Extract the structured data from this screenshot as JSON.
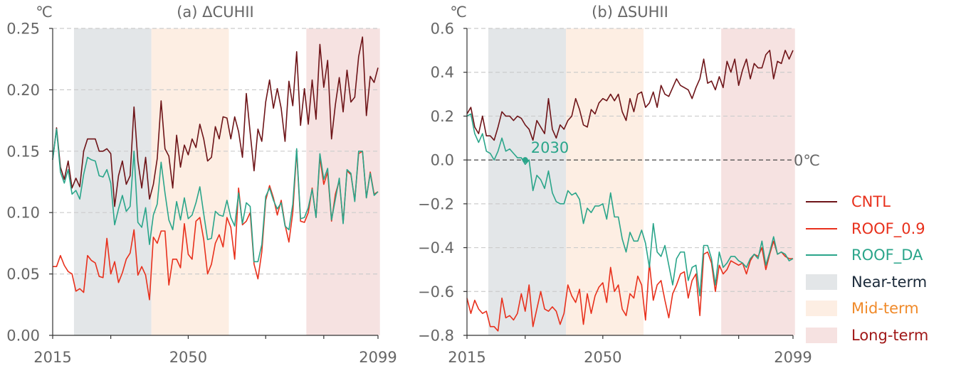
{
  "colors": {
    "CNTL": "#6e1418",
    "ROOF_0.9": "#e8301c",
    "ROOF_DA": "#2aa58a",
    "near_band": "#e3e6e8",
    "mid_band": "#fdeee3",
    "long_band": "#f6e2e1",
    "axis_text": "#666666",
    "grid": "#cccccc",
    "near_text": "#1b2a3a",
    "mid_text": "#f08a2a",
    "long_text": "#a01818"
  },
  "legend": [
    {
      "key": "CNTL",
      "label": "CNTL",
      "kind": "line",
      "text_color": "ROOF_0.9"
    },
    {
      "key": "ROOF_0.9",
      "label": "ROOF_0.9",
      "kind": "line",
      "text_color": "ROOF_0.9"
    },
    {
      "key": "ROOF_DA",
      "label": "ROOF_DA",
      "kind": "line",
      "text_color": "ROOF_DA"
    },
    {
      "key": "near_band",
      "label": "Near-term",
      "kind": "patch",
      "text_color": "near_text"
    },
    {
      "key": "mid_band",
      "label": "Mid-term",
      "kind": "patch",
      "text_color": "mid_text"
    },
    {
      "key": "long_band",
      "label": "Long-term",
      "kind": "patch",
      "text_color": "long_text"
    }
  ],
  "chart_data": [
    {
      "type": "line",
      "title": "(a) ΔCUHII",
      "ylabel": "℃",
      "xlim": [
        2015,
        2099
      ],
      "ylim": [
        0,
        0.25
      ],
      "yticks": [
        0,
        0.05,
        0.1,
        0.15,
        0.2,
        0.25
      ],
      "ytick_labels": [
        "0.00",
        "0.05",
        "0.10",
        "0.15",
        "0.20",
        "0.25"
      ],
      "xtick_labels": [
        {
          "year": 2015,
          "label": "2015"
        },
        {
          "year": 2050,
          "label": "2050"
        },
        {
          "year": 2099,
          "label": "2099"
        }
      ],
      "x_minor_ticks": [
        2015,
        2030,
        2050,
        2070,
        2085,
        2099
      ],
      "grid": "horizontal dashed",
      "periods": [
        {
          "name": "Near-term",
          "start": 2021,
          "end": 2040
        },
        {
          "name": "Mid-term",
          "start": 2041,
          "end": 2060
        },
        {
          "name": "Long-term",
          "start": 2081,
          "end": 2099
        }
      ],
      "x": [
        2015,
        2016,
        2017,
        2018,
        2019,
        2020,
        2021,
        2022,
        2023,
        2024,
        2025,
        2026,
        2027,
        2028,
        2029,
        2030,
        2031,
        2032,
        2033,
        2034,
        2035,
        2036,
        2037,
        2038,
        2039,
        2040,
        2041,
        2042,
        2043,
        2044,
        2045,
        2046,
        2047,
        2048,
        2049,
        2050,
        2051,
        2052,
        2053,
        2054,
        2055,
        2056,
        2057,
        2058,
        2059,
        2060,
        2061,
        2062,
        2063,
        2064,
        2065,
        2066,
        2067,
        2068,
        2069,
        2070,
        2071,
        2072,
        2073,
        2074,
        2075,
        2076,
        2077,
        2078,
        2079,
        2080,
        2081,
        2082,
        2083,
        2084,
        2085,
        2086,
        2087,
        2088,
        2089,
        2090,
        2091,
        2092,
        2093,
        2094,
        2095,
        2096,
        2097,
        2098,
        2099
      ],
      "series": [
        {
          "name": "CNTL",
          "values": [
            0.143,
            0.169,
            0.137,
            0.127,
            0.142,
            0.12,
            0.128,
            0.121,
            0.15,
            0.16,
            0.16,
            0.16,
            0.15,
            0.15,
            0.152,
            0.148,
            0.105,
            0.13,
            0.142,
            0.123,
            0.13,
            0.186,
            0.142,
            0.12,
            0.145,
            0.111,
            0.123,
            0.144,
            0.191,
            0.152,
            0.146,
            0.12,
            0.163,
            0.137,
            0.155,
            0.147,
            0.16,
            0.153,
            0.172,
            0.16,
            0.142,
            0.145,
            0.17,
            0.16,
            0.178,
            0.177,
            0.16,
            0.178,
            0.166,
            0.145,
            0.197,
            0.165,
            0.134,
            0.168,
            0.158,
            0.19,
            0.208,
            0.185,
            0.201,
            0.185,
            0.158,
            0.207,
            0.187,
            0.231,
            0.171,
            0.201,
            0.172,
            0.208,
            0.176,
            0.237,
            0.202,
            0.224,
            0.16,
            0.188,
            0.21,
            0.182,
            0.216,
            0.19,
            0.194,
            0.227,
            0.243,
            0.179,
            0.211,
            0.206,
            0.218
          ]
        },
        {
          "name": "ROOF_0.9",
          "values": [
            0.056,
            0.056,
            0.065,
            0.057,
            0.052,
            0.05,
            0.036,
            0.038,
            0.035,
            0.065,
            0.061,
            0.059,
            0.048,
            0.047,
            0.079,
            0.05,
            0.06,
            0.043,
            0.051,
            0.062,
            0.067,
            0.086,
            0.049,
            0.056,
            0.049,
            0.029,
            0.08,
            0.075,
            0.085,
            0.085,
            0.041,
            0.062,
            0.062,
            0.055,
            0.091,
            0.066,
            0.062,
            0.093,
            0.096,
            0.078,
            0.05,
            0.058,
            0.075,
            0.082,
            0.072,
            0.096,
            0.088,
            0.062,
            0.12,
            0.09,
            0.093,
            0.1,
            0.058,
            0.046,
            0.068,
            0.11,
            0.122,
            0.112,
            0.098,
            0.11,
            0.09,
            0.076,
            0.1,
            0.15,
            0.093,
            0.092,
            0.1,
            0.12,
            0.096,
            0.145,
            0.123,
            0.133,
            0.093,
            0.115,
            0.126,
            0.092,
            0.134,
            0.131,
            0.11,
            0.148,
            0.15,
            0.112,
            0.133,
            0.115,
            0.117
          ]
        },
        {
          "name": "ROOF_DA",
          "values": [
            0.143,
            0.168,
            0.133,
            0.124,
            0.135,
            0.115,
            0.118,
            0.111,
            0.131,
            0.145,
            0.143,
            0.142,
            0.13,
            0.129,
            0.135,
            0.124,
            0.09,
            0.103,
            0.114,
            0.101,
            0.105,
            0.15,
            0.092,
            0.088,
            0.104,
            0.074,
            0.098,
            0.107,
            0.141,
            0.116,
            0.094,
            0.086,
            0.109,
            0.094,
            0.112,
            0.095,
            0.098,
            0.108,
            0.121,
            0.099,
            0.078,
            0.079,
            0.101,
            0.098,
            0.097,
            0.11,
            0.096,
            0.089,
            0.116,
            0.091,
            0.108,
            0.105,
            0.06,
            0.06,
            0.074,
            0.113,
            0.12,
            0.11,
            0.103,
            0.108,
            0.089,
            0.086,
            0.107,
            0.152,
            0.095,
            0.096,
            0.104,
            0.119,
            0.096,
            0.148,
            0.127,
            0.136,
            0.094,
            0.111,
            0.128,
            0.091,
            0.135,
            0.132,
            0.109,
            0.15,
            0.15,
            0.112,
            0.132,
            0.114,
            0.117
          ]
        }
      ]
    },
    {
      "type": "line",
      "title": "(b) ΔSUHII",
      "ylabel": "℃",
      "xlim": [
        2015,
        2099
      ],
      "ylim": [
        -0.8,
        0.6
      ],
      "yticks": [
        -0.8,
        -0.6,
        -0.4,
        -0.2,
        0,
        0.2,
        0.4,
        0.6
      ],
      "ytick_labels": [
        "−0.8",
        "−0.6",
        "−0.4",
        "−0.2",
        "0.0",
        "0.2",
        "0.4",
        "0.6"
      ],
      "xtick_labels": [
        {
          "year": 2015,
          "label": "2015"
        },
        {
          "year": 2050,
          "label": "2050"
        },
        {
          "year": 2099,
          "label": "2099"
        }
      ],
      "x_minor_ticks": [
        2015,
        2030,
        2050,
        2070,
        2085,
        2099
      ],
      "grid": "horizontal dashed",
      "reference_line": {
        "y": 0,
        "label": "0℃"
      },
      "annotation": {
        "x": 2030,
        "y": 0,
        "label": "2030"
      },
      "periods": [
        {
          "name": "Near-term",
          "start": 2021,
          "end": 2040
        },
        {
          "name": "Mid-term",
          "start": 2041,
          "end": 2060
        },
        {
          "name": "Long-term",
          "start": 2081,
          "end": 2099
        }
      ],
      "x": [
        2015,
        2016,
        2017,
        2018,
        2019,
        2020,
        2021,
        2022,
        2023,
        2024,
        2025,
        2026,
        2027,
        2028,
        2029,
        2030,
        2031,
        2032,
        2033,
        2034,
        2035,
        2036,
        2037,
        2038,
        2039,
        2040,
        2041,
        2042,
        2043,
        2044,
        2045,
        2046,
        2047,
        2048,
        2049,
        2050,
        2051,
        2052,
        2053,
        2054,
        2055,
        2056,
        2057,
        2058,
        2059,
        2060,
        2061,
        2062,
        2063,
        2064,
        2065,
        2066,
        2067,
        2068,
        2069,
        2070,
        2071,
        2072,
        2073,
        2074,
        2075,
        2076,
        2077,
        2078,
        2079,
        2080,
        2081,
        2082,
        2083,
        2084,
        2085,
        2086,
        2087,
        2088,
        2089,
        2090,
        2091,
        2092,
        2093,
        2094,
        2095,
        2096,
        2097,
        2098,
        2099
      ],
      "series": [
        {
          "name": "CNTL",
          "values": [
            0.21,
            0.24,
            0.15,
            0.12,
            0.2,
            0.11,
            0.11,
            0.09,
            0.15,
            0.22,
            0.2,
            0.2,
            0.18,
            0.2,
            0.19,
            0.16,
            0.14,
            0.09,
            0.18,
            0.15,
            0.12,
            0.28,
            0.14,
            0.1,
            0.16,
            0.14,
            0.18,
            0.2,
            0.28,
            0.23,
            0.16,
            0.15,
            0.23,
            0.21,
            0.26,
            0.28,
            0.27,
            0.3,
            0.27,
            0.3,
            0.22,
            0.18,
            0.28,
            0.22,
            0.3,
            0.31,
            0.24,
            0.26,
            0.31,
            0.24,
            0.34,
            0.3,
            0.29,
            0.33,
            0.37,
            0.34,
            0.33,
            0.32,
            0.28,
            0.33,
            0.37,
            0.46,
            0.35,
            0.36,
            0.32,
            0.38,
            0.33,
            0.45,
            0.4,
            0.46,
            0.34,
            0.41,
            0.46,
            0.37,
            0.44,
            0.42,
            0.42,
            0.48,
            0.5,
            0.37,
            0.45,
            0.44,
            0.5,
            0.46,
            0.5
          ]
        },
        {
          "name": "ROOF_0.9",
          "values": [
            -0.63,
            -0.7,
            -0.64,
            -0.68,
            -0.7,
            -0.69,
            -0.76,
            -0.76,
            -0.78,
            -0.63,
            -0.72,
            -0.71,
            -0.73,
            -0.7,
            -0.61,
            -0.69,
            -0.57,
            -0.76,
            -0.68,
            -0.6,
            -0.68,
            -0.69,
            -0.67,
            -0.69,
            -0.75,
            -0.7,
            -0.57,
            -0.62,
            -0.65,
            -0.59,
            -0.75,
            -0.61,
            -0.7,
            -0.62,
            -0.58,
            -0.56,
            -0.65,
            -0.49,
            -0.6,
            -0.57,
            -0.68,
            -0.71,
            -0.61,
            -0.63,
            -0.53,
            -0.57,
            -0.73,
            -0.47,
            -0.64,
            -0.57,
            -0.55,
            -0.64,
            -0.72,
            -0.61,
            -0.57,
            -0.52,
            -0.51,
            -0.63,
            -0.55,
            -0.52,
            -0.71,
            -0.43,
            -0.42,
            -0.47,
            -0.6,
            -0.48,
            -0.52,
            -0.5,
            -0.46,
            -0.47,
            -0.48,
            -0.47,
            -0.52,
            -0.46,
            -0.43,
            -0.44,
            -0.4,
            -0.5,
            -0.43,
            -0.37,
            -0.43,
            -0.42,
            -0.44,
            -0.45,
            -0.45
          ]
        },
        {
          "name": "ROOF_DA",
          "values": [
            0.2,
            0.21,
            0.12,
            0.08,
            0.12,
            0.04,
            0.03,
            0.0,
            0.04,
            0.1,
            0.04,
            0.05,
            0.03,
            0.01,
            0.01,
            -0.02,
            0.0,
            -0.14,
            -0.07,
            -0.09,
            -0.13,
            -0.05,
            -0.15,
            -0.19,
            -0.2,
            -0.2,
            -0.14,
            -0.16,
            -0.15,
            -0.18,
            -0.29,
            -0.22,
            -0.24,
            -0.21,
            -0.21,
            -0.2,
            -0.27,
            -0.15,
            -0.26,
            -0.26,
            -0.36,
            -0.42,
            -0.33,
            -0.37,
            -0.37,
            -0.32,
            -0.38,
            -0.49,
            -0.29,
            -0.42,
            -0.44,
            -0.39,
            -0.48,
            -0.57,
            -0.45,
            -0.42,
            -0.42,
            -0.55,
            -0.49,
            -0.48,
            -0.62,
            -0.39,
            -0.39,
            -0.45,
            -0.57,
            -0.42,
            -0.49,
            -0.47,
            -0.44,
            -0.44,
            -0.46,
            -0.47,
            -0.49,
            -0.45,
            -0.43,
            -0.45,
            -0.37,
            -0.48,
            -0.42,
            -0.35,
            -0.43,
            -0.42,
            -0.43,
            -0.46,
            -0.45
          ]
        }
      ]
    }
  ]
}
